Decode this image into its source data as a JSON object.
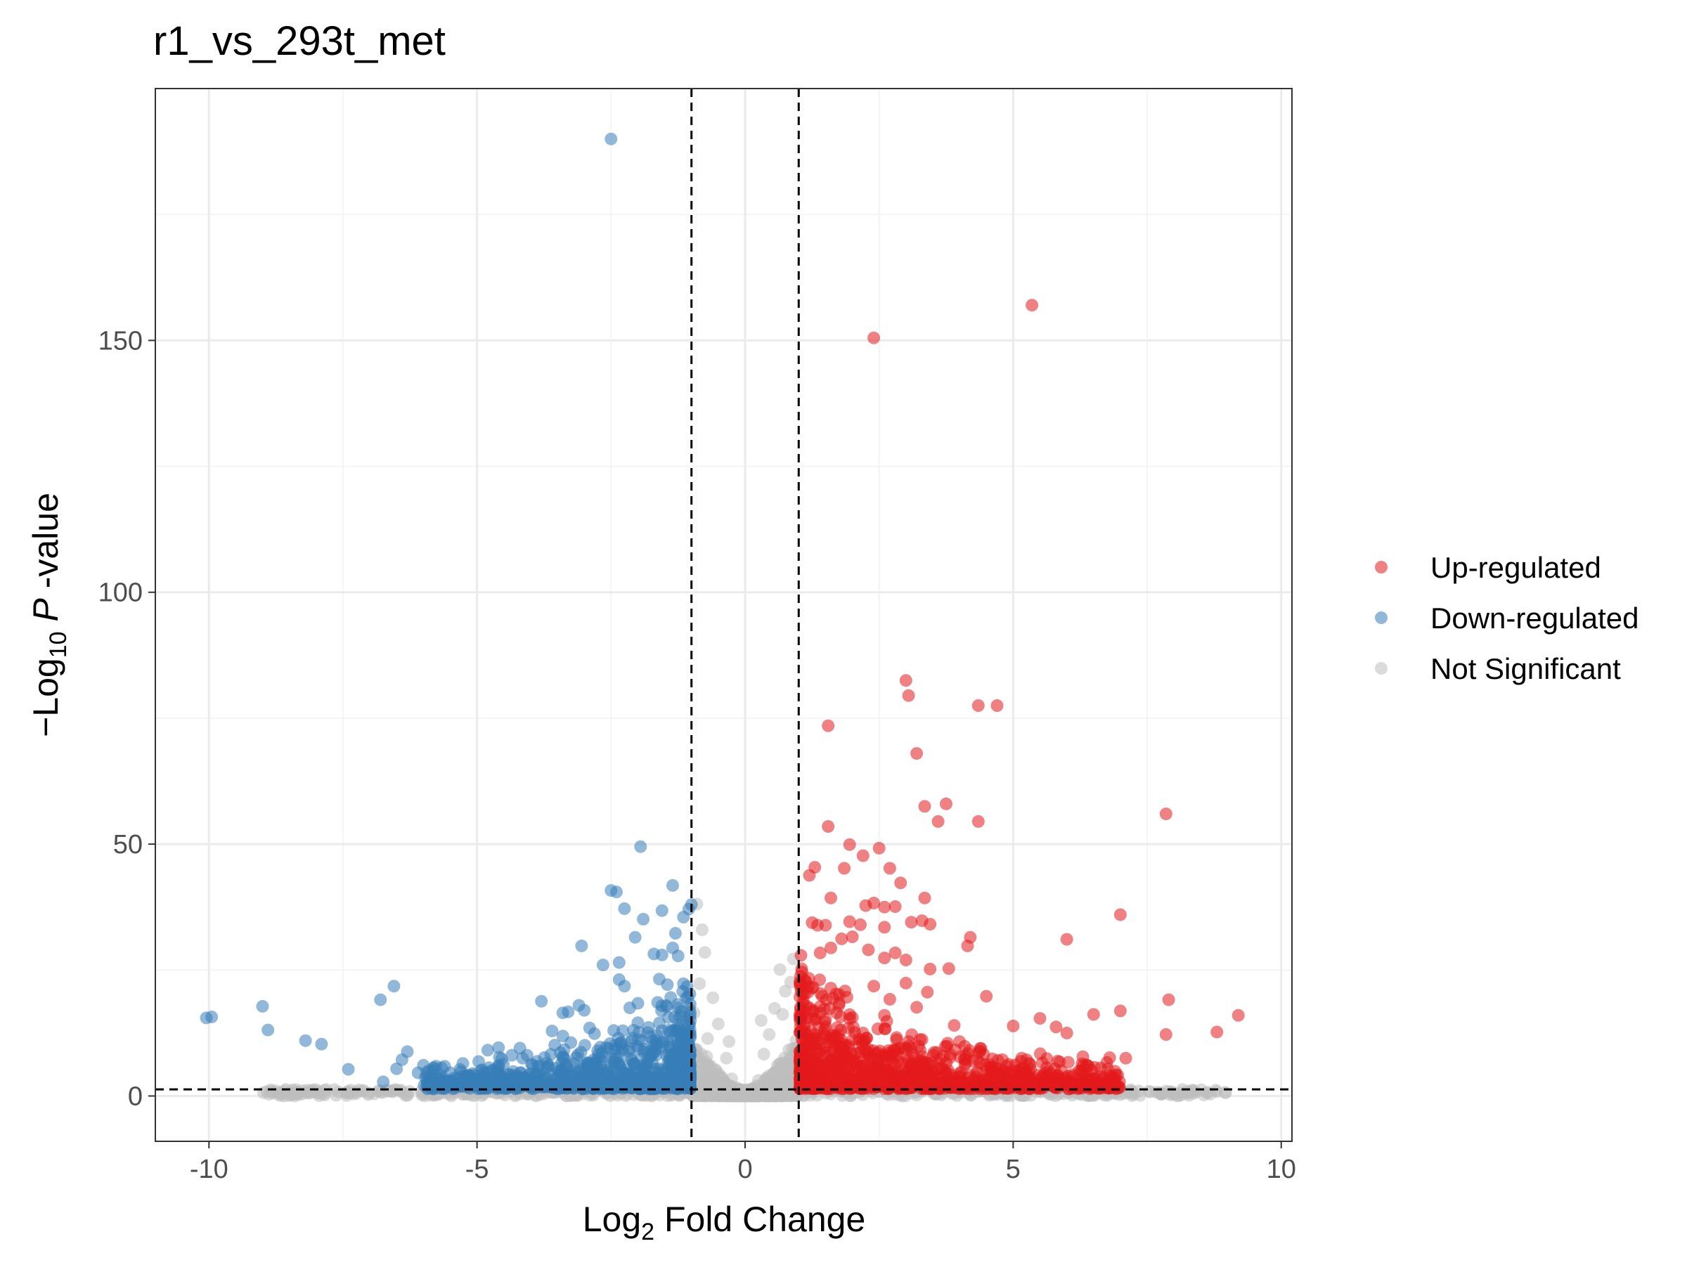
{
  "chart_data": {
    "type": "scatter",
    "title": "r1_vs_293t_met",
    "xlabel": {
      "prefix": "Log",
      "sub": "2",
      "suffix": " Fold Change"
    },
    "ylabel": {
      "prefix": "−Log",
      "sub": "10",
      "italic": "P",
      "suffix": " -value"
    },
    "xlim": [
      -11,
      10.2
    ],
    "ylim": [
      -9,
      200
    ],
    "x_ticks": [
      -10,
      -5,
      0,
      5,
      10
    ],
    "x_tick_labels": [
      "-10",
      "-5",
      "0",
      "5",
      "10"
    ],
    "y_ticks": [
      0,
      50,
      100,
      150
    ],
    "y_tick_labels": [
      "0",
      "50",
      "100",
      "150"
    ],
    "grid": true,
    "legend_position": "right",
    "thresholds": {
      "log2fc": [
        -1,
        1
      ],
      "neg_log10_p": 1.3
    },
    "colors": {
      "up": "#e41a1c",
      "down": "#377eb8",
      "ns": "#bdbdbd"
    },
    "series": [
      {
        "name": "Up-regulated",
        "color": "#e41a1c",
        "points": [
          [
            5.35,
            157
          ],
          [
            2.4,
            150.5
          ],
          [
            3.0,
            82.5
          ],
          [
            3.05,
            79.5
          ],
          [
            4.35,
            77.5
          ],
          [
            4.7,
            77.5
          ],
          [
            1.55,
            73.5
          ],
          [
            3.2,
            68
          ],
          [
            3.35,
            57.5
          ],
          [
            3.75,
            58
          ],
          [
            3.6,
            54.5
          ],
          [
            4.35,
            54.5
          ],
          [
            7.85,
            56
          ],
          [
            1.55,
            53.5
          ],
          [
            2.5,
            49.2
          ],
          [
            1.95,
            49.9
          ],
          [
            2.2,
            47.7
          ],
          [
            1.3,
            45.4
          ],
          [
            1.2,
            43.8
          ],
          [
            1.85,
            45.2
          ],
          [
            2.7,
            45.2
          ],
          [
            2.9,
            42.3
          ],
          [
            1.6,
            39.3
          ],
          [
            2.25,
            37.8
          ],
          [
            2.4,
            38.3
          ],
          [
            2.6,
            37.5
          ],
          [
            2.8,
            37.6
          ],
          [
            3.35,
            39.3
          ],
          [
            3.1,
            34.5
          ],
          [
            3.3,
            34.8
          ],
          [
            3.45,
            34.1
          ],
          [
            7.0,
            36
          ],
          [
            1.35,
            33.9
          ],
          [
            1.5,
            33.9
          ],
          [
            1.25,
            34.4
          ],
          [
            1.95,
            34.6
          ],
          [
            2.15,
            34.0
          ],
          [
            2.6,
            33.5
          ],
          [
            4.2,
            31.5
          ],
          [
            4.15,
            29.8
          ],
          [
            6.0,
            31.1
          ],
          [
            1.4,
            28.4
          ],
          [
            1.6,
            29.4
          ],
          [
            1.8,
            31.2
          ],
          [
            2.0,
            31.6
          ],
          [
            2.3,
            29.0
          ],
          [
            2.6,
            27.4
          ],
          [
            2.8,
            28.4
          ],
          [
            3.0,
            27.0
          ],
          [
            3.45,
            25.2
          ],
          [
            3.8,
            25.3
          ],
          [
            4.5,
            19.8
          ],
          [
            7.9,
            19.1
          ],
          [
            9.2,
            16
          ],
          [
            8.8,
            12.7
          ],
          [
            7.85,
            12.2
          ],
          [
            7.0,
            16.9
          ],
          [
            6.5,
            16.2
          ],
          [
            5.5,
            15.4
          ],
          [
            5.8,
            13.7
          ],
          [
            6.0,
            12.5
          ],
          [
            5.0,
            13.9
          ],
          [
            7.1,
            7.5
          ],
          [
            6.8,
            7.6
          ],
          [
            6.3,
            7.8
          ],
          [
            6.9,
            4.9
          ],
          [
            6.75,
            2.8
          ],
          [
            5.9,
            5.0
          ],
          [
            4.8,
            7.2
          ],
          [
            4.6,
            5.7
          ],
          [
            3.9,
            14.0
          ],
          [
            3.2,
            17.6
          ],
          [
            2.4,
            21.8
          ],
          [
            1.9,
            19.6
          ],
          [
            1.5,
            15.2
          ],
          [
            1.2,
            10.1
          ],
          [
            1.7,
            7.8
          ],
          [
            2.2,
            12.5
          ],
          [
            2.6,
            16.0
          ],
          [
            3.3,
            11.2
          ],
          [
            3.7,
            8.0
          ],
          [
            4.1,
            6.2
          ],
          [
            5.2,
            4.5
          ],
          [
            5.6,
            3.6
          ],
          [
            6.1,
            4.2
          ],
          [
            1.1,
            4.6
          ],
          [
            1.4,
            2.5
          ],
          [
            1.8,
            3.8
          ],
          [
            2.1,
            5.6
          ],
          [
            2.9,
            9.5
          ],
          [
            3.5,
            4.8
          ],
          [
            4.3,
            3.1
          ],
          [
            4.9,
            3.0
          ],
          [
            1.3,
            12.2
          ],
          [
            2.0,
            15.6
          ],
          [
            2.7,
            19.2
          ],
          [
            3.0,
            22.4
          ],
          [
            3.4,
            20.6
          ],
          [
            1.15,
            17.8
          ],
          [
            1.6,
            21.4
          ],
          [
            4.0,
            10.8
          ],
          [
            4.4,
            9.4
          ],
          [
            5.3,
            6.5
          ],
          [
            1.25,
            7.0
          ],
          [
            2.3,
            8.6
          ],
          [
            3.1,
            6.0
          ],
          [
            3.9,
            3.6
          ],
          [
            6.4,
            3.0
          ]
        ]
      },
      {
        "name": "Down-regulated",
        "color": "#377eb8",
        "points": [
          [
            -2.5,
            190
          ],
          [
            -1.95,
            49.5
          ],
          [
            -2.5,
            40.8
          ],
          [
            -2.4,
            40.5
          ],
          [
            -1.35,
            41.8
          ],
          [
            -1.0,
            38.0
          ],
          [
            -1.05,
            37.1
          ],
          [
            -1.15,
            35.5
          ],
          [
            -1.55,
            36.8
          ],
          [
            -2.25,
            37.2
          ],
          [
            -1.9,
            35.1
          ],
          [
            -2.05,
            31.5
          ],
          [
            -1.3,
            32.3
          ],
          [
            -3.05,
            29.8
          ],
          [
            -1.7,
            28.2
          ],
          [
            -1.55,
            28.0
          ],
          [
            -1.35,
            29.4
          ],
          [
            -1.25,
            27.8
          ],
          [
            -2.35,
            26.5
          ],
          [
            -2.65,
            26.0
          ],
          [
            -2.35,
            23.1
          ],
          [
            -2.25,
            21.8
          ],
          [
            -1.6,
            23.2
          ],
          [
            -1.45,
            22.1
          ],
          [
            -1.15,
            22.3
          ],
          [
            -3.8,
            18.8
          ],
          [
            -3.1,
            18.0
          ],
          [
            -3.0,
            17.0
          ],
          [
            -3.3,
            16.7
          ],
          [
            -3.4,
            16.5
          ],
          [
            -2.9,
            13.5
          ],
          [
            -2.15,
            17.5
          ],
          [
            -2.0,
            18.4
          ],
          [
            -3.6,
            12.9
          ],
          [
            -3.4,
            11.9
          ],
          [
            -3.25,
            10.6
          ],
          [
            -3.55,
            10.1
          ],
          [
            -2.7,
            9.7
          ],
          [
            -2.55,
            9.4
          ],
          [
            -4.2,
            9.5
          ],
          [
            -4.6,
            9.6
          ],
          [
            -4.8,
            9.1
          ],
          [
            -4.15,
            7.5
          ],
          [
            -9.95,
            15.7
          ],
          [
            -10.05,
            15.5
          ],
          [
            -9.0,
            17.8
          ],
          [
            -8.9,
            13.1
          ],
          [
            -8.2,
            11.0
          ],
          [
            -7.9,
            10.3
          ],
          [
            -7.4,
            5.3
          ],
          [
            -6.8,
            19.1
          ],
          [
            -6.55,
            21.8
          ],
          [
            -6.3,
            8.8
          ],
          [
            -6.4,
            7.2
          ],
          [
            -6.5,
            5.4
          ],
          [
            -6.1,
            4.6
          ],
          [
            -5.8,
            5.5
          ],
          [
            -6.75,
            2.8
          ],
          [
            -5.5,
            4.6
          ],
          [
            -5.3,
            4.8
          ],
          [
            -5.1,
            3.5
          ],
          [
            -4.9,
            5.2
          ],
          [
            -4.6,
            4.1
          ],
          [
            -4.3,
            3.0
          ],
          [
            -4.0,
            4.4
          ],
          [
            -3.7,
            3.5
          ],
          [
            -3.2,
            4.0
          ],
          [
            -2.8,
            5.5
          ],
          [
            -2.6,
            7.8
          ],
          [
            -2.3,
            9.0
          ],
          [
            -2.1,
            11.5
          ],
          [
            -1.8,
            13.6
          ],
          [
            -1.6,
            14.5
          ],
          [
            -1.4,
            12.7
          ],
          [
            -1.2,
            16.0
          ],
          [
            -1.1,
            19.5
          ],
          [
            -1.7,
            8.6
          ],
          [
            -1.9,
            6.2
          ],
          [
            -2.2,
            4.3
          ],
          [
            -1.5,
            5.0
          ],
          [
            -1.3,
            7.1
          ],
          [
            -1.1,
            9.6
          ],
          [
            -1.2,
            3.3
          ],
          [
            -1.6,
            2.2
          ],
          [
            -5.6,
            3.0
          ],
          [
            -4.4,
            2.2
          ],
          [
            -6.0,
            6.1
          ],
          [
            -5.0,
            2.4
          ],
          [
            -3.0,
            2.8
          ],
          [
            -2.45,
            13.0
          ]
        ]
      },
      {
        "name": "Not Significant",
        "color": "#bdbdbd",
        "points": [
          [
            -0.9,
            38.1
          ],
          [
            -0.8,
            33.0
          ],
          [
            -0.75,
            28.5
          ],
          [
            0.9,
            27.2
          ],
          [
            0.65,
            25.1
          ],
          [
            0.85,
            22.6
          ],
          [
            0.75,
            20.8
          ],
          [
            0.55,
            17.4
          ],
          [
            0.7,
            16.2
          ],
          [
            -0.6,
            19.5
          ],
          [
            -0.85,
            22.3
          ],
          [
            -0.5,
            14.3
          ],
          [
            -0.7,
            11.4
          ],
          [
            0.45,
            12.2
          ],
          [
            0.35,
            8.3
          ],
          [
            0.6,
            6.0
          ],
          [
            -0.35,
            7.5
          ],
          [
            -0.55,
            5.2
          ],
          [
            -0.25,
            3.4
          ],
          [
            0.25,
            3.1
          ],
          [
            -0.15,
            1.6
          ],
          [
            0.15,
            1.4
          ],
          [
            0.05,
            0.5
          ],
          [
            -0.05,
            0.4
          ],
          [
            0.5,
            2.0
          ],
          [
            -0.45,
            1.8
          ],
          [
            -0.9,
            9.2
          ],
          [
            0.95,
            11.0
          ],
          [
            -8.6,
            1.0
          ],
          [
            -5.0,
            0.8
          ],
          [
            -3.0,
            0.9
          ],
          [
            -2.0,
            0.7
          ],
          [
            -1.5,
            0.8
          ],
          [
            1.5,
            0.6
          ],
          [
            2.5,
            0.9
          ],
          [
            3.5,
            0.8
          ],
          [
            4.0,
            1.0
          ],
          [
            5.5,
            0.9
          ],
          [
            6.0,
            1.1
          ],
          [
            7.0,
            1.0
          ],
          [
            -4.0,
            1.1
          ],
          [
            -6.5,
            1.2
          ],
          [
            -0.3,
            10.8
          ],
          [
            0.3,
            15.0
          ],
          [
            -0.95,
            16.5
          ],
          [
            0.8,
            4.5
          ],
          [
            -0.8,
            3.7
          ]
        ]
      }
    ],
    "background_density": {
      "ns_core_x": [
        -1,
        1
      ],
      "ns_core_y_max": 12,
      "sig_up_band_x": [
        1,
        7
      ],
      "sig_down_band_x": [
        -6,
        -1
      ]
    }
  }
}
